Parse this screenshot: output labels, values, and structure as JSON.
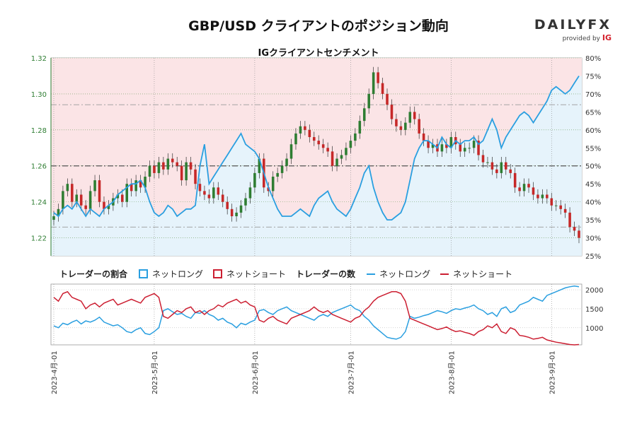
{
  "title": "GBP/USD クライアントのポジション動向",
  "subtitle": "IGクライアントセンチメント",
  "logo": {
    "main_a": "DAILY",
    "main_b": "FX",
    "sub": "provided by",
    "sub_brand": "IG"
  },
  "legend": {
    "ratio_title": "トレーダーの割合",
    "count_title": "トレーダーの数",
    "net_long": "ネットロング",
    "net_short": "ネットショート"
  },
  "colors": {
    "long": "#2a9fe0",
    "short": "#cc1f32",
    "long_fill": "#e6f3fb",
    "short_fill": "#fbe4e6",
    "candle_up": "#2e7d32",
    "candle_down": "#c62828",
    "axis_green": "#2e7d32"
  },
  "chart_data": {
    "type": "candlestick",
    "x_tick_labels": [
      "2023-4月-01",
      "2023-5月-01",
      "2023-6月-01",
      "2023-7月-01",
      "2023-8月-01",
      "2023-9月-01"
    ],
    "y_left_ticks": [
      "1.22",
      "1.24",
      "1.26",
      "1.28",
      "1.30",
      "1.32"
    ],
    "y_left_range": [
      1.21,
      1.32
    ],
    "y_right_ticks": [
      "25%",
      "30%",
      "35%",
      "40%",
      "45%",
      "50%",
      "55%",
      "60%",
      "65%",
      "70%",
      "75%",
      "80%"
    ],
    "y_right_range": [
      25,
      80
    ],
    "y_bottom_ticks": [
      "1000",
      "1500",
      "2000"
    ],
    "y_bottom_range": [
      550,
      2150
    ],
    "reference_lines_pct": [
      67,
      50,
      33
    ],
    "price_close": [
      1.232,
      1.236,
      1.246,
      1.25,
      1.24,
      1.244,
      1.238,
      1.236,
      1.246,
      1.252,
      1.24,
      1.236,
      1.238,
      1.242,
      1.244,
      1.24,
      1.25,
      1.246,
      1.252,
      1.248,
      1.254,
      1.26,
      1.256,
      1.262,
      1.258,
      1.264,
      1.262,
      1.26,
      1.252,
      1.262,
      1.258,
      1.25,
      1.246,
      1.244,
      1.242,
      1.248,
      1.244,
      1.24,
      1.236,
      1.232,
      1.234,
      1.238,
      1.242,
      1.248,
      1.256,
      1.264,
      1.248,
      1.246,
      1.254,
      1.256,
      1.26,
      1.264,
      1.272,
      1.278,
      1.282,
      1.28,
      1.276,
      1.274,
      1.272,
      1.27,
      1.268,
      1.26,
      1.264,
      1.266,
      1.27,
      1.274,
      1.278,
      1.285,
      1.292,
      1.3,
      1.312,
      1.306,
      1.3,
      1.294,
      1.286,
      1.282,
      1.28,
      1.284,
      1.29,
      1.286,
      1.278,
      1.274,
      1.27,
      1.272,
      1.268,
      1.272,
      1.27,
      1.276,
      1.272,
      1.268,
      1.27,
      1.27,
      1.274,
      1.266,
      1.262,
      1.262,
      1.258,
      1.256,
      1.262,
      1.258,
      1.256,
      1.248,
      1.246,
      1.25,
      1.248,
      1.244,
      1.242,
      1.244,
      1.242,
      1.238,
      1.238,
      1.236,
      1.234,
      1.226,
      1.224,
      1.22
    ],
    "long_pct": [
      37,
      36,
      38,
      39,
      38,
      40,
      38,
      36,
      38,
      37,
      36,
      38,
      39,
      40,
      42,
      43,
      44,
      45,
      45,
      46,
      44,
      40,
      37,
      36,
      37,
      39,
      38,
      36,
      37,
      38,
      38,
      39,
      50,
      56,
      45,
      47,
      49,
      51,
      53,
      55,
      57,
      59,
      56,
      55,
      54,
      52,
      48,
      44,
      41,
      38,
      36,
      36,
      36,
      37,
      38,
      37,
      36,
      39,
      41,
      42,
      43,
      40,
      38,
      37,
      36,
      38,
      41,
      44,
      48,
      50,
      44,
      40,
      37,
      35,
      35,
      36,
      37,
      40,
      46,
      52,
      55,
      57,
      57,
      56,
      55,
      58,
      56,
      55,
      57,
      56,
      57,
      57,
      58,
      56,
      57,
      60,
      63,
      60,
      55,
      58,
      60,
      62,
      64,
      65,
      64,
      62,
      64,
      66,
      68,
      71,
      72,
      71,
      70,
      71,
      73,
      75
    ],
    "count_long": [
      1050,
      1000,
      1120,
      1080,
      1150,
      1200,
      1100,
      1180,
      1150,
      1200,
      1280,
      1150,
      1100,
      1050,
      1080,
      1000,
      900,
      870,
      950,
      1000,
      850,
      820,
      900,
      1000,
      1450,
      1500,
      1420,
      1350,
      1380,
      1300,
      1250,
      1400,
      1380,
      1450,
      1350,
      1300,
      1200,
      1250,
      1150,
      1100,
      1000,
      1120,
      1080,
      1150,
      1200,
      1450,
      1480,
      1400,
      1350,
      1450,
      1500,
      1550,
      1450,
      1400,
      1350,
      1300,
      1250,
      1200,
      1300,
      1350,
      1300,
      1400,
      1450,
      1500,
      1550,
      1600,
      1500,
      1450,
      1300,
      1200,
      1050,
      950,
      850,
      750,
      720,
      700,
      750,
      900,
      1300,
      1250,
      1280,
      1320,
      1350,
      1400,
      1450,
      1420,
      1380,
      1450,
      1500,
      1480,
      1520,
      1550,
      1600,
      1500,
      1450,
      1350,
      1400,
      1300,
      1500,
      1550,
      1400,
      1450,
      1600,
      1650,
      1700,
      1800,
      1750,
      1700,
      1850,
      1900,
      1950,
      2000,
      2050,
      2080,
      2100,
      2080
    ],
    "count_short": [
      1800,
      1700,
      1900,
      1950,
      1800,
      1750,
      1700,
      1500,
      1600,
      1650,
      1550,
      1650,
      1700,
      1750,
      1600,
      1650,
      1700,
      1750,
      1700,
      1650,
      1800,
      1850,
      1900,
      1800,
      1300,
      1250,
      1350,
      1450,
      1400,
      1500,
      1550,
      1400,
      1450,
      1350,
      1450,
      1500,
      1600,
      1550,
      1650,
      1700,
      1750,
      1650,
      1700,
      1600,
      1550,
      1200,
      1150,
      1250,
      1300,
      1200,
      1150,
      1100,
      1250,
      1300,
      1350,
      1400,
      1450,
      1550,
      1450,
      1400,
      1450,
      1350,
      1300,
      1250,
      1200,
      1150,
      1250,
      1300,
      1450,
      1550,
      1700,
      1800,
      1850,
      1900,
      1950,
      1950,
      1900,
      1700,
      1250,
      1200,
      1150,
      1100,
      1050,
      1000,
      950,
      980,
      1020,
      950,
      900,
      920,
      880,
      850,
      800,
      900,
      950,
      1050,
      1000,
      1100,
      900,
      850,
      1000,
      950,
      800,
      780,
      750,
      700,
      720,
      750,
      680,
      650,
      620,
      600,
      580,
      560,
      550,
      560
    ]
  }
}
